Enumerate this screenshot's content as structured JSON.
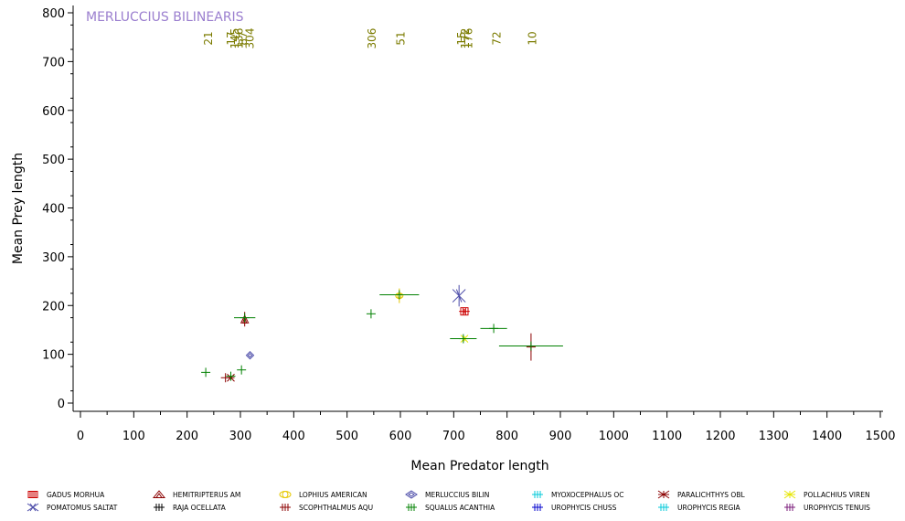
{
  "chart_data": {
    "type": "scatter",
    "title": "MERLUCCIUS BILINEARIS",
    "xlabel": "Mean Predator length",
    "ylabel": "Mean Prey length",
    "xlim": [
      0,
      1500
    ],
    "ylim": [
      0,
      800
    ],
    "xticks": [
      0,
      100,
      200,
      300,
      400,
      500,
      600,
      700,
      800,
      900,
      1000,
      1100,
      1200,
      1300,
      1400,
      1500
    ],
    "yticks": [
      0,
      100,
      200,
      300,
      400,
      500,
      600,
      700,
      800
    ],
    "count_labels": [
      {
        "text": "21",
        "x": 240
      },
      {
        "text": "17",
        "x": 283
      },
      {
        "text": "145",
        "x": 290
      },
      {
        "text": "136",
        "x": 297
      },
      {
        "text": "87",
        "x": 305
      },
      {
        "text": "304",
        "x": 318
      },
      {
        "text": "306",
        "x": 547
      },
      {
        "text": "51",
        "x": 601
      },
      {
        "text": "15",
        "x": 715
      },
      {
        "text": "172",
        "x": 722
      },
      {
        "text": "176",
        "x": 728
      },
      {
        "text": "72",
        "x": 781
      },
      {
        "text": "10",
        "x": 848
      }
    ],
    "series": [
      {
        "name": "GADUS MORHUA",
        "color": "#cc0000",
        "marker": "square",
        "points": [
          {
            "x": 720,
            "y": 188,
            "xerr": 10,
            "yerr": 5
          }
        ]
      },
      {
        "name": "HEMITRIPTERUS AM",
        "color": "#8b0000",
        "marker": "triangle",
        "points": [
          {
            "x": 308,
            "y": 172,
            "xerr": 0,
            "yerr": 15
          }
        ]
      },
      {
        "name": "LOPHIUS AMERICAN",
        "color": "#e6c800",
        "marker": "circle",
        "points": [
          {
            "x": 598,
            "y": 220,
            "xerr": 0,
            "yerr": 15
          }
        ]
      },
      {
        "name": "MERLUCCIUS BILIN",
        "color": "#4a4aa8",
        "marker": "diamond",
        "points": [
          {
            "x": 318,
            "y": 98,
            "xerr": 0,
            "yerr": 0
          }
        ]
      },
      {
        "name": "MYOXOCEPHALUS OC",
        "color": "#00c8d8",
        "marker": "plus",
        "points": []
      },
      {
        "name": "PARALICHTHYS OBL",
        "color": "#8b0000",
        "marker": "star",
        "points": [
          {
            "x": 282,
            "y": 52,
            "xerr": 0,
            "yerr": 6
          }
        ]
      },
      {
        "name": "POLLACHIUS VIREN",
        "color": "#e6e600",
        "marker": "star",
        "points": [
          {
            "x": 720,
            "y": 132,
            "xerr": 0,
            "yerr": 5
          }
        ]
      },
      {
        "name": "POMATOMUS SALTAT",
        "color": "#4a4aa8",
        "marker": "x",
        "points": [
          {
            "x": 710,
            "y": 220,
            "xerr": 0,
            "yerr": 22
          }
        ]
      },
      {
        "name": "RAJA OCELLATA",
        "color": "#000000",
        "marker": "plus",
        "points": []
      },
      {
        "name": "SCOPHTHALMUS AQU",
        "color": "#8b0000",
        "marker": "plus",
        "points": [
          {
            "x": 272,
            "y": 52,
            "xerr": 0,
            "yerr": 0
          },
          {
            "x": 845,
            "y": 115,
            "xerr": 0,
            "yerr": 28
          }
        ]
      },
      {
        "name": "SQUALUS ACANTHIA",
        "color": "#008000",
        "marker": "plus",
        "points": [
          {
            "x": 235,
            "y": 63,
            "xerr": 0,
            "yerr": 0
          },
          {
            "x": 282,
            "y": 55,
            "xerr": 0,
            "yerr": 0
          },
          {
            "x": 302,
            "y": 68,
            "xerr": 0,
            "yerr": 0
          },
          {
            "x": 308,
            "y": 175,
            "xerr": 20,
            "yerr": 0
          },
          {
            "x": 545,
            "y": 183,
            "xerr": 0,
            "yerr": 0
          },
          {
            "x": 598,
            "y": 222,
            "xerr": 37,
            "yerr": 0
          },
          {
            "x": 718,
            "y": 132,
            "xerr": 25,
            "yerr": 0
          },
          {
            "x": 775,
            "y": 153,
            "xerr": 25,
            "yerr": 0
          },
          {
            "x": 845,
            "y": 117,
            "xerr": 60,
            "yerr": 0
          }
        ]
      },
      {
        "name": "UROPHYCIS CHUSS",
        "color": "#0000cc",
        "marker": "plus",
        "points": []
      },
      {
        "name": "UROPHYCIS REGIA",
        "color": "#00c8d8",
        "marker": "plus",
        "points": []
      },
      {
        "name": "UROPHYCIS TENUIS",
        "color": "#7a1a7a",
        "marker": "plus",
        "points": []
      }
    ]
  }
}
